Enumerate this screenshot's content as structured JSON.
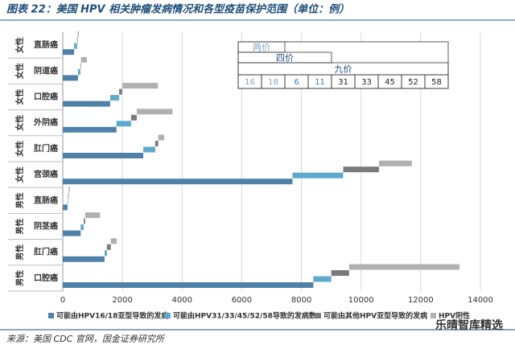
{
  "chart_data": {
    "type": "bar",
    "orientation": "horizontal",
    "title": "图表 22：美国 HPV 相关肿瘤发病情况和各型疫苗保护范围（单位：例）",
    "source": "来源：美国 CDC 官网，国金证券研究所",
    "watermark": "乐晴智库精选",
    "categories": [
      "直肠癌",
      "阴道癌",
      "口腔癌",
      "外阴癌",
      "肛门癌",
      "宫颈癌",
      "直肠癌",
      "阴茎癌",
      "肛门癌",
      "口腔癌"
    ],
    "groups": [
      "女性",
      "女性",
      "女性",
      "女性",
      "女性",
      "女性",
      "男性",
      "男性",
      "男性",
      "男性"
    ],
    "series": [
      {
        "name": "可能由HPV16/18亚型导致的发病",
        "color": "#4f81a8",
        "values": [
          380,
          510,
          1590,
          1800,
          2700,
          7700,
          160,
          600,
          1400,
          8400
        ]
      },
      {
        "name": "可能由HPV31/33/45/52/58导致的发病数",
        "color": "#5ea9cc",
        "values": [
          100,
          80,
          300,
          490,
          400,
          1700,
          20,
          100,
          80,
          600
        ]
      },
      {
        "name": "可能由其他HPV亚型导致的发病",
        "color": "#7a7a7a",
        "values": [
          20,
          20,
          100,
          190,
          100,
          1200,
          20,
          50,
          130,
          600
        ]
      },
      {
        "name": "HPV阴性",
        "color": "#b0b0b0",
        "values": [
          40,
          200,
          1200,
          1200,
          200,
          1100,
          40,
          500,
          200,
          3700
        ]
      }
    ],
    "xlim": [
      0,
      14000
    ],
    "xticks": [
      0,
      2000,
      4000,
      6000,
      8000,
      10000,
      12000,
      14000
    ],
    "grid": true,
    "vaccine_table": {
      "names": [
        "两价",
        "四价",
        "九价"
      ],
      "types": [
        16,
        18,
        6,
        11,
        31,
        33,
        45,
        52,
        58
      ]
    }
  }
}
